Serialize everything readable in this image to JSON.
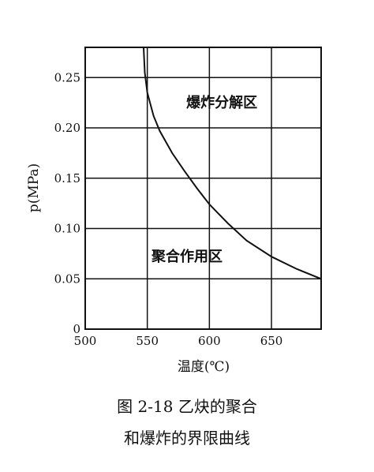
{
  "chart_data": {
    "type": "line",
    "xlabel": "温度(℃)",
    "ylabel": "p(MPa)",
    "xlim": [
      500,
      690
    ],
    "ylim": [
      0,
      0.28
    ],
    "x_ticks": [
      "500",
      "550",
      "600",
      "650"
    ],
    "y_ticks": [
      "0",
      "0.05",
      "0.10",
      "0.15",
      "0.20",
      "0.25"
    ],
    "grid": true,
    "series": [
      {
        "x": [
          547,
          548,
          550,
          555,
          560,
          570,
          580,
          590,
          600,
          615,
          630,
          650,
          670,
          690
        ],
        "y": [
          0.28,
          0.255,
          0.235,
          0.212,
          0.197,
          0.175,
          0.157,
          0.14,
          0.124,
          0.105,
          0.088,
          0.072,
          0.06,
          0.05
        ]
      }
    ],
    "annotations": [
      {
        "text": "爆炸分解区",
        "x": 610,
        "y": 0.225
      },
      {
        "text": "聚合作用区",
        "x": 582,
        "y": 0.072
      }
    ]
  },
  "caption": {
    "line1": "图 2-18   乙炔的聚合",
    "line2": "和爆炸的界限曲线"
  }
}
